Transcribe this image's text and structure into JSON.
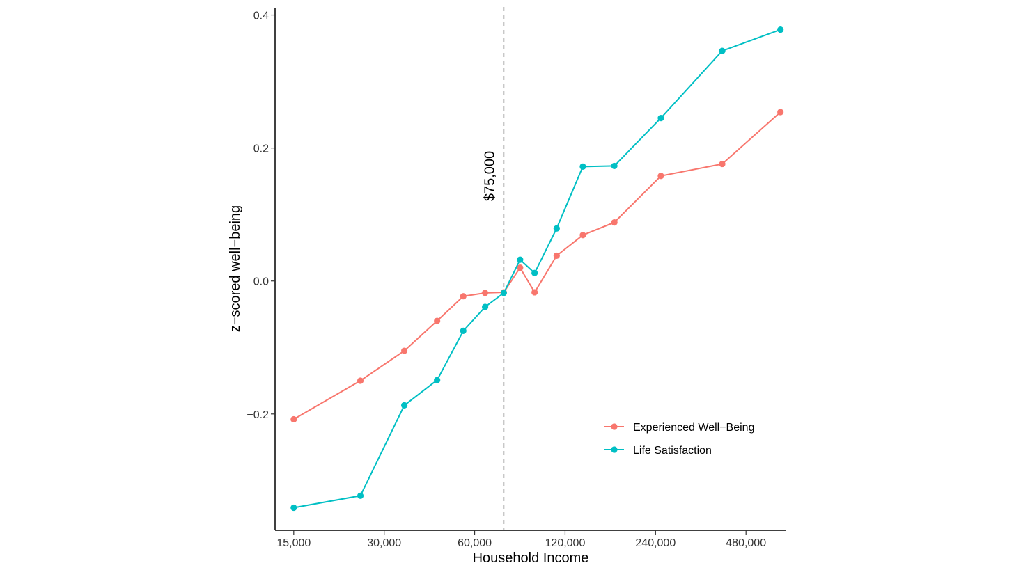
{
  "chart_data": {
    "type": "line",
    "title": "",
    "xlabel": "Household Income",
    "ylabel": "z−scored well−being",
    "x_scale": "log2",
    "xlim": [
      13000,
      650000
    ],
    "ylim": [
      -0.375,
      0.41
    ],
    "x_ticks": [
      15000,
      30000,
      60000,
      120000,
      240000,
      480000
    ],
    "x_tick_labels": [
      "15,000",
      "30,000",
      "60,000",
      "120,000",
      "240,000",
      "480,000"
    ],
    "y_ticks": [
      -0.2,
      0.0,
      0.2,
      0.4
    ],
    "y_tick_labels": [
      "−0.2",
      "0.0",
      "0.2",
      "0.4"
    ],
    "grid": false,
    "x": [
      15000,
      25000,
      35000,
      45000,
      55000,
      65000,
      75000,
      85000,
      95000,
      112500,
      137500,
      175000,
      250000,
      400000,
      625000
    ],
    "series": [
      {
        "name": "Experienced Well−Being",
        "color": "#F8766D",
        "values": [
          -0.208,
          -0.15,
          -0.105,
          -0.06,
          -0.023,
          -0.018,
          -0.017,
          0.02,
          -0.017,
          0.038,
          0.069,
          0.088,
          0.158,
          0.176,
          0.254
        ]
      },
      {
        "name": "Life Satisfaction",
        "color": "#00BFC4",
        "values": [
          -0.341,
          -0.323,
          -0.187,
          -0.149,
          -0.075,
          -0.039,
          -0.018,
          0.032,
          0.012,
          0.079,
          0.172,
          0.173,
          0.245,
          0.346,
          0.378
        ]
      }
    ],
    "reference_line": {
      "x": 75000,
      "label": "$75,000",
      "color": "#808080",
      "style": "dashed"
    },
    "legend": {
      "position": "bottom-right"
    }
  }
}
